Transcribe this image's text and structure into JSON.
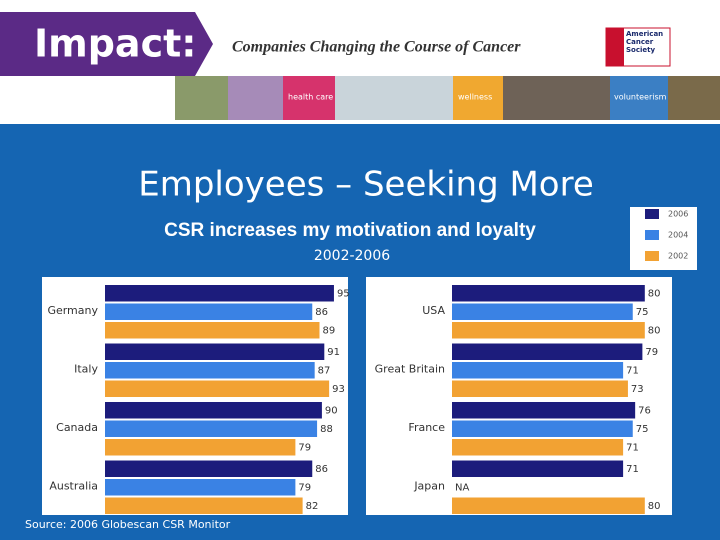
{
  "header": {
    "brand": "Impact:",
    "tagline": "Companies Changing the Course of Cancer",
    "logo": "American Cancer Society",
    "strip": [
      "health care",
      "wellness",
      "volunteerism"
    ]
  },
  "chart_data": {
    "type": "bar",
    "orientation": "horizontal",
    "title": "Employees – Seeking More",
    "subtitle": "CSR increases my motivation and loyalty",
    "period": "2002-2006",
    "source": "Source: 2006 Globescan CSR Monitor",
    "categories": [
      "Germany",
      "Italy",
      "Canada",
      "Australia",
      "USA",
      "Great Britain",
      "France",
      "Japan"
    ],
    "xlim": [
      0,
      100
    ],
    "series": [
      {
        "name": "2006",
        "color": "#1c1c7c",
        "values": [
          95,
          91,
          90,
          86,
          80,
          79,
          76,
          71
        ]
      },
      {
        "name": "2004",
        "color": "#3a82e4",
        "values": [
          86,
          87,
          88,
          79,
          75,
          71,
          75,
          null
        ],
        "value_labels": [
          "86",
          "87",
          "88",
          "79",
          "75",
          "71",
          "75",
          "NA"
        ]
      },
      {
        "name": "2002",
        "color": "#f2a233",
        "values": [
          89,
          93,
          79,
          82,
          80,
          73,
          71,
          80
        ]
      }
    ]
  }
}
